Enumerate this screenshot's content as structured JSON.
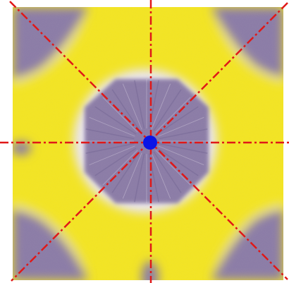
{
  "image": {
    "subject": "tie-dye-fabric-square",
    "colors": {
      "background": "#ffffff",
      "yellow": "#f5e61e",
      "yellow_light": "#f8ef6a",
      "purple": "#8a7aa6",
      "purple_dark": "#6f6190",
      "white_band": "#ece7f2",
      "symmetry_line": "#e01818",
      "center_point": "#0a14e6"
    },
    "overlay": {
      "line_style": "dash-dot",
      "line_count": 4,
      "center_marker": "filled-circle"
    }
  }
}
